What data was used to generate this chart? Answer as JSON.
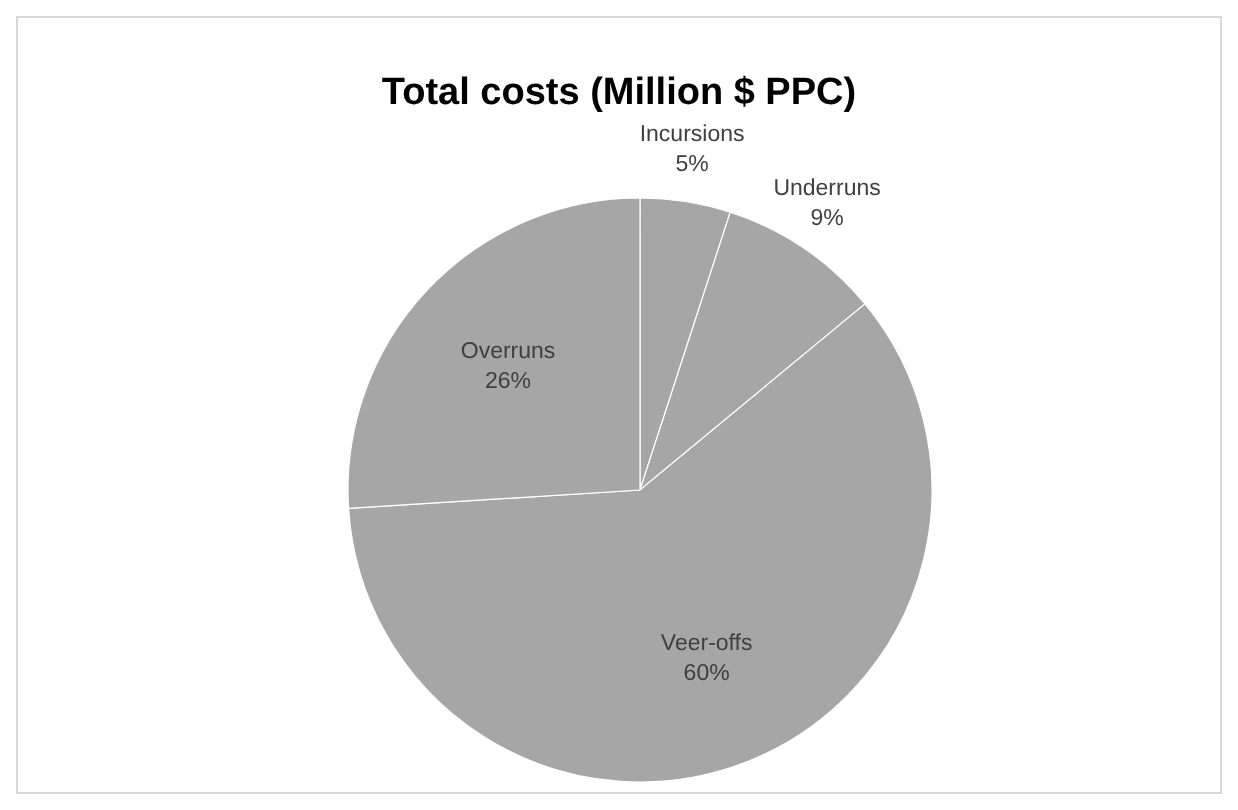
{
  "chart_data": {
    "type": "pie",
    "title": "Total costs (Million $ PPC)",
    "categories": [
      "Incursions",
      "Underruns",
      "Veer-offs",
      "Overruns"
    ],
    "values": [
      5,
      9,
      60,
      26
    ],
    "colors": [
      "#a6a6a6",
      "#a6a6a6",
      "#a6a6a6",
      "#a6a6a6"
    ],
    "value_labels": [
      "5%",
      "9%",
      "60%",
      "26%"
    ]
  }
}
